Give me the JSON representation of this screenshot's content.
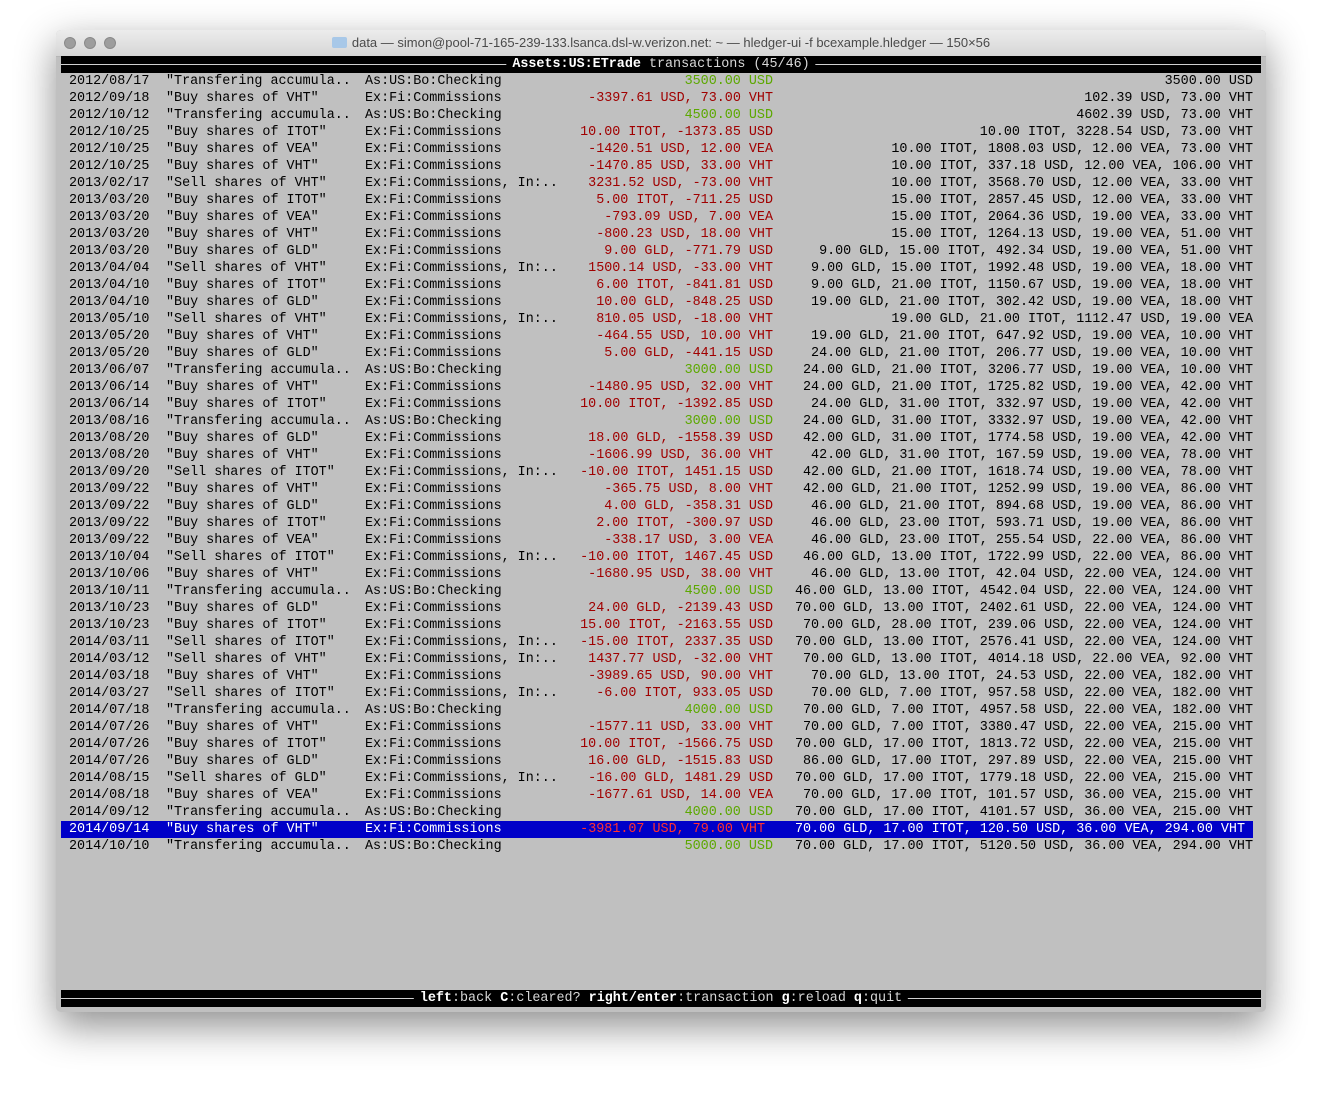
{
  "window": {
    "title": "data — simon@pool-71-165-239-133.lsanca.dsl-w.verizon.net: ~ — hledger-ui -f bcexample.hledger — 150×56"
  },
  "header": {
    "account": "Assets:US:ETrade",
    "label": "transactions",
    "count": "(45/46)"
  },
  "colors": {
    "inflow": "#5ca800",
    "outflow": "#a00000",
    "selection": "#0000c8",
    "background": "#c0c0c0"
  },
  "selected_index": 44,
  "rows": [
    {
      "date": "2012/08/17",
      "desc": "\"Transfering accumula..",
      "account": "As:US:Bo:Checking",
      "amount": "3500.00 USD",
      "style": "green",
      "balance": "3500.00 USD"
    },
    {
      "date": "2012/09/18",
      "desc": "\"Buy shares of VHT\"",
      "account": "Ex:Fi:Commissions",
      "amount": "-3397.61 USD, 73.00 VHT",
      "style": "red",
      "balance": "102.39 USD, 73.00 VHT"
    },
    {
      "date": "2012/10/12",
      "desc": "\"Transfering accumula..",
      "account": "As:US:Bo:Checking",
      "amount": "4500.00 USD",
      "style": "green",
      "balance": "4602.39 USD, 73.00 VHT"
    },
    {
      "date": "2012/10/25",
      "desc": "\"Buy shares of ITOT\"",
      "account": "Ex:Fi:Commissions",
      "amount": "10.00 ITOT, -1373.85 USD",
      "style": "red",
      "balance": "10.00 ITOT, 3228.54 USD, 73.00 VHT"
    },
    {
      "date": "2012/10/25",
      "desc": "\"Buy shares of VEA\"",
      "account": "Ex:Fi:Commissions",
      "amount": "-1420.51 USD, 12.00 VEA",
      "style": "red",
      "balance": "10.00 ITOT, 1808.03 USD, 12.00 VEA, 73.00 VHT"
    },
    {
      "date": "2012/10/25",
      "desc": "\"Buy shares of VHT\"",
      "account": "Ex:Fi:Commissions",
      "amount": "-1470.85 USD, 33.00 VHT",
      "style": "red",
      "balance": "10.00 ITOT, 337.18 USD, 12.00 VEA, 106.00 VHT"
    },
    {
      "date": "2013/02/17",
      "desc": "\"Sell shares of VHT\"",
      "account": "Ex:Fi:Commissions, In:..",
      "amount": "3231.52 USD, -73.00 VHT",
      "style": "red",
      "balance": "10.00 ITOT, 3568.70 USD, 12.00 VEA, 33.00 VHT"
    },
    {
      "date": "2013/03/20",
      "desc": "\"Buy shares of ITOT\"",
      "account": "Ex:Fi:Commissions",
      "amount": "5.00 ITOT, -711.25 USD",
      "style": "red",
      "balance": "15.00 ITOT, 2857.45 USD, 12.00 VEA, 33.00 VHT"
    },
    {
      "date": "2013/03/20",
      "desc": "\"Buy shares of VEA\"",
      "account": "Ex:Fi:Commissions",
      "amount": "-793.09 USD, 7.00 VEA",
      "style": "red",
      "balance": "15.00 ITOT, 2064.36 USD, 19.00 VEA, 33.00 VHT"
    },
    {
      "date": "2013/03/20",
      "desc": "\"Buy shares of VHT\"",
      "account": "Ex:Fi:Commissions",
      "amount": "-800.23 USD, 18.00 VHT",
      "style": "red",
      "balance": "15.00 ITOT, 1264.13 USD, 19.00 VEA, 51.00 VHT"
    },
    {
      "date": "2013/03/20",
      "desc": "\"Buy shares of GLD\"",
      "account": "Ex:Fi:Commissions",
      "amount": "9.00 GLD, -771.79 USD",
      "style": "red",
      "balance": "9.00 GLD, 15.00 ITOT, 492.34 USD, 19.00 VEA, 51.00 VHT"
    },
    {
      "date": "2013/04/04",
      "desc": "\"Sell shares of VHT\"",
      "account": "Ex:Fi:Commissions, In:..",
      "amount": "1500.14 USD, -33.00 VHT",
      "style": "red",
      "balance": "9.00 GLD, 15.00 ITOT, 1992.48 USD, 19.00 VEA, 18.00 VHT"
    },
    {
      "date": "2013/04/10",
      "desc": "\"Buy shares of ITOT\"",
      "account": "Ex:Fi:Commissions",
      "amount": "6.00 ITOT, -841.81 USD",
      "style": "red",
      "balance": "9.00 GLD, 21.00 ITOT, 1150.67 USD, 19.00 VEA, 18.00 VHT"
    },
    {
      "date": "2013/04/10",
      "desc": "\"Buy shares of GLD\"",
      "account": "Ex:Fi:Commissions",
      "amount": "10.00 GLD, -848.25 USD",
      "style": "red",
      "balance": "19.00 GLD, 21.00 ITOT, 302.42 USD, 19.00 VEA, 18.00 VHT"
    },
    {
      "date": "2013/05/10",
      "desc": "\"Sell shares of VHT\"",
      "account": "Ex:Fi:Commissions, In:..",
      "amount": "810.05 USD, -18.00 VHT",
      "style": "red",
      "balance": "19.00 GLD, 21.00 ITOT, 1112.47 USD, 19.00 VEA"
    },
    {
      "date": "2013/05/20",
      "desc": "\"Buy shares of VHT\"",
      "account": "Ex:Fi:Commissions",
      "amount": "-464.55 USD, 10.00 VHT",
      "style": "red",
      "balance": "19.00 GLD, 21.00 ITOT, 647.92 USD, 19.00 VEA, 10.00 VHT"
    },
    {
      "date": "2013/05/20",
      "desc": "\"Buy shares of GLD\"",
      "account": "Ex:Fi:Commissions",
      "amount": "5.00 GLD, -441.15 USD",
      "style": "red",
      "balance": "24.00 GLD, 21.00 ITOT, 206.77 USD, 19.00 VEA, 10.00 VHT"
    },
    {
      "date": "2013/06/07",
      "desc": "\"Transfering accumula..",
      "account": "As:US:Bo:Checking",
      "amount": "3000.00 USD",
      "style": "green",
      "balance": "24.00 GLD, 21.00 ITOT, 3206.77 USD, 19.00 VEA, 10.00 VHT"
    },
    {
      "date": "2013/06/14",
      "desc": "\"Buy shares of VHT\"",
      "account": "Ex:Fi:Commissions",
      "amount": "-1480.95 USD, 32.00 VHT",
      "style": "red",
      "balance": "24.00 GLD, 21.00 ITOT, 1725.82 USD, 19.00 VEA, 42.00 VHT"
    },
    {
      "date": "2013/06/14",
      "desc": "\"Buy shares of ITOT\"",
      "account": "Ex:Fi:Commissions",
      "amount": "10.00 ITOT, -1392.85 USD",
      "style": "red",
      "balance": "24.00 GLD, 31.00 ITOT, 332.97 USD, 19.00 VEA, 42.00 VHT"
    },
    {
      "date": "2013/08/16",
      "desc": "\"Transfering accumula..",
      "account": "As:US:Bo:Checking",
      "amount": "3000.00 USD",
      "style": "green",
      "balance": "24.00 GLD, 31.00 ITOT, 3332.97 USD, 19.00 VEA, 42.00 VHT"
    },
    {
      "date": "2013/08/20",
      "desc": "\"Buy shares of GLD\"",
      "account": "Ex:Fi:Commissions",
      "amount": "18.00 GLD, -1558.39 USD",
      "style": "red",
      "balance": "42.00 GLD, 31.00 ITOT, 1774.58 USD, 19.00 VEA, 42.00 VHT"
    },
    {
      "date": "2013/08/20",
      "desc": "\"Buy shares of VHT\"",
      "account": "Ex:Fi:Commissions",
      "amount": "-1606.99 USD, 36.00 VHT",
      "style": "red",
      "balance": "42.00 GLD, 31.00 ITOT, 167.59 USD, 19.00 VEA, 78.00 VHT"
    },
    {
      "date": "2013/09/20",
      "desc": "\"Sell shares of ITOT\"",
      "account": "Ex:Fi:Commissions, In:..",
      "amount": "-10.00 ITOT, 1451.15 USD",
      "style": "red",
      "balance": "42.00 GLD, 21.00 ITOT, 1618.74 USD, 19.00 VEA, 78.00 VHT"
    },
    {
      "date": "2013/09/22",
      "desc": "\"Buy shares of VHT\"",
      "account": "Ex:Fi:Commissions",
      "amount": "-365.75 USD, 8.00 VHT",
      "style": "red",
      "balance": "42.00 GLD, 21.00 ITOT, 1252.99 USD, 19.00 VEA, 86.00 VHT"
    },
    {
      "date": "2013/09/22",
      "desc": "\"Buy shares of GLD\"",
      "account": "Ex:Fi:Commissions",
      "amount": "4.00 GLD, -358.31 USD",
      "style": "red",
      "balance": "46.00 GLD, 21.00 ITOT, 894.68 USD, 19.00 VEA, 86.00 VHT"
    },
    {
      "date": "2013/09/22",
      "desc": "\"Buy shares of ITOT\"",
      "account": "Ex:Fi:Commissions",
      "amount": "2.00 ITOT, -300.97 USD",
      "style": "red",
      "balance": "46.00 GLD, 23.00 ITOT, 593.71 USD, 19.00 VEA, 86.00 VHT"
    },
    {
      "date": "2013/09/22",
      "desc": "\"Buy shares of VEA\"",
      "account": "Ex:Fi:Commissions",
      "amount": "-338.17 USD, 3.00 VEA",
      "style": "red",
      "balance": "46.00 GLD, 23.00 ITOT, 255.54 USD, 22.00 VEA, 86.00 VHT"
    },
    {
      "date": "2013/10/04",
      "desc": "\"Sell shares of ITOT\"",
      "account": "Ex:Fi:Commissions, In:..",
      "amount": "-10.00 ITOT, 1467.45 USD",
      "style": "red",
      "balance": "46.00 GLD, 13.00 ITOT, 1722.99 USD, 22.00 VEA, 86.00 VHT"
    },
    {
      "date": "2013/10/06",
      "desc": "\"Buy shares of VHT\"",
      "account": "Ex:Fi:Commissions",
      "amount": "-1680.95 USD, 38.00 VHT",
      "style": "red",
      "balance": "46.00 GLD, 13.00 ITOT, 42.04 USD, 22.00 VEA, 124.00 VHT"
    },
    {
      "date": "2013/10/11",
      "desc": "\"Transfering accumula..",
      "account": "As:US:Bo:Checking",
      "amount": "4500.00 USD",
      "style": "green",
      "balance": "46.00 GLD, 13.00 ITOT, 4542.04 USD, 22.00 VEA, 124.00 VHT"
    },
    {
      "date": "2013/10/23",
      "desc": "\"Buy shares of GLD\"",
      "account": "Ex:Fi:Commissions",
      "amount": "24.00 GLD, -2139.43 USD",
      "style": "red",
      "balance": "70.00 GLD, 13.00 ITOT, 2402.61 USD, 22.00 VEA, 124.00 VHT"
    },
    {
      "date": "2013/10/23",
      "desc": "\"Buy shares of ITOT\"",
      "account": "Ex:Fi:Commissions",
      "amount": "15.00 ITOT, -2163.55 USD",
      "style": "red",
      "balance": "70.00 GLD, 28.00 ITOT, 239.06 USD, 22.00 VEA, 124.00 VHT"
    },
    {
      "date": "2014/03/11",
      "desc": "\"Sell shares of ITOT\"",
      "account": "Ex:Fi:Commissions, In:..",
      "amount": "-15.00 ITOT, 2337.35 USD",
      "style": "red",
      "balance": "70.00 GLD, 13.00 ITOT, 2576.41 USD, 22.00 VEA, 124.00 VHT"
    },
    {
      "date": "2014/03/12",
      "desc": "\"Sell shares of VHT\"",
      "account": "Ex:Fi:Commissions, In:..",
      "amount": "1437.77 USD, -32.00 VHT",
      "style": "red",
      "balance": "70.00 GLD, 13.00 ITOT, 4014.18 USD, 22.00 VEA, 92.00 VHT"
    },
    {
      "date": "2014/03/18",
      "desc": "\"Buy shares of VHT\"",
      "account": "Ex:Fi:Commissions",
      "amount": "-3989.65 USD, 90.00 VHT",
      "style": "red",
      "balance": "70.00 GLD, 13.00 ITOT, 24.53 USD, 22.00 VEA, 182.00 VHT"
    },
    {
      "date": "2014/03/27",
      "desc": "\"Sell shares of ITOT\"",
      "account": "Ex:Fi:Commissions, In:..",
      "amount": "-6.00 ITOT, 933.05 USD",
      "style": "red",
      "balance": "70.00 GLD, 7.00 ITOT, 957.58 USD, 22.00 VEA, 182.00 VHT"
    },
    {
      "date": "2014/07/18",
      "desc": "\"Transfering accumula..",
      "account": "As:US:Bo:Checking",
      "amount": "4000.00 USD",
      "style": "green",
      "balance": "70.00 GLD, 7.00 ITOT, 4957.58 USD, 22.00 VEA, 182.00 VHT"
    },
    {
      "date": "2014/07/26",
      "desc": "\"Buy shares of VHT\"",
      "account": "Ex:Fi:Commissions",
      "amount": "-1577.11 USD, 33.00 VHT",
      "style": "red",
      "balance": "70.00 GLD, 7.00 ITOT, 3380.47 USD, 22.00 VEA, 215.00 VHT"
    },
    {
      "date": "2014/07/26",
      "desc": "\"Buy shares of ITOT\"",
      "account": "Ex:Fi:Commissions",
      "amount": "10.00 ITOT, -1566.75 USD",
      "style": "red",
      "balance": "70.00 GLD, 17.00 ITOT, 1813.72 USD, 22.00 VEA, 215.00 VHT"
    },
    {
      "date": "2014/07/26",
      "desc": "\"Buy shares of GLD\"",
      "account": "Ex:Fi:Commissions",
      "amount": "16.00 GLD, -1515.83 USD",
      "style": "red",
      "balance": "86.00 GLD, 17.00 ITOT, 297.89 USD, 22.00 VEA, 215.00 VHT"
    },
    {
      "date": "2014/08/15",
      "desc": "\"Sell shares of GLD\"",
      "account": "Ex:Fi:Commissions, In:..",
      "amount": "-16.00 GLD, 1481.29 USD",
      "style": "red",
      "balance": "70.00 GLD, 17.00 ITOT, 1779.18 USD, 22.00 VEA, 215.00 VHT"
    },
    {
      "date": "2014/08/18",
      "desc": "\"Buy shares of VEA\"",
      "account": "Ex:Fi:Commissions",
      "amount": "-1677.61 USD, 14.00 VEA",
      "style": "red",
      "balance": "70.00 GLD, 17.00 ITOT, 101.57 USD, 36.00 VEA, 215.00 VHT"
    },
    {
      "date": "2014/09/12",
      "desc": "\"Transfering accumula..",
      "account": "As:US:Bo:Checking",
      "amount": "4000.00 USD",
      "style": "green",
      "balance": "70.00 GLD, 17.00 ITOT, 4101.57 USD, 36.00 VEA, 215.00 VHT"
    },
    {
      "date": "2014/09/14",
      "desc": "\"Buy shares of VHT\"",
      "account": "Ex:Fi:Commissions",
      "amount": "-3981.07 USD, 79.00 VHT",
      "style": "red",
      "balance": "70.00 GLD, 17.00 ITOT, 120.50 USD, 36.00 VEA, 294.00 VHT"
    },
    {
      "date": "2014/10/10",
      "desc": "\"Transfering accumula..",
      "account": "As:US:Bo:Checking",
      "amount": "5000.00 USD",
      "style": "green",
      "balance": "70.00 GLD, 17.00 ITOT, 5120.50 USD, 36.00 VEA, 294.00 VHT"
    }
  ],
  "footer": {
    "keys": [
      {
        "key": "left",
        "action": "back"
      },
      {
        "key": "C",
        "action": "cleared?"
      },
      {
        "key": "right/enter",
        "action": "transaction"
      },
      {
        "key": "g",
        "action": "reload"
      },
      {
        "key": "q",
        "action": "quit"
      }
    ]
  }
}
